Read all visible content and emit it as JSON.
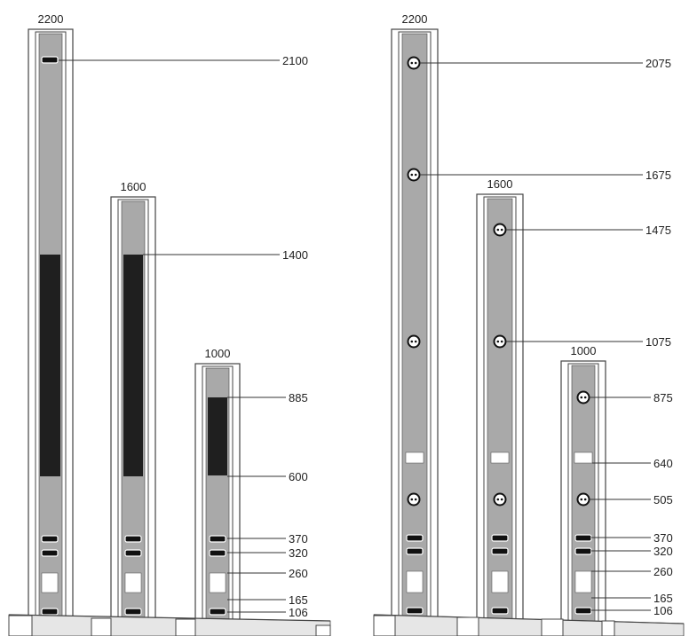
{
  "colors": {
    "frame_fill": "#ffffff",
    "frame_stroke": "#444444",
    "panel_fill": "#a9a9a9",
    "dark_panel_fill": "#1f1f1f",
    "slot_fill": "#111111",
    "leader_line": "#333333",
    "ground_fill": "#e6e6e6"
  },
  "left_group": {
    "columns": [
      {
        "height_label": "2200"
      },
      {
        "height_label": "1600"
      },
      {
        "height_label": "1000"
      }
    ],
    "callouts": [
      "2100",
      "1400",
      "885",
      "600",
      "370",
      "320",
      "260",
      "165",
      "106"
    ]
  },
  "right_group": {
    "columns": [
      {
        "height_label": "2200"
      },
      {
        "height_label": "1600"
      },
      {
        "height_label": "1000"
      }
    ],
    "callouts": [
      "2075",
      "1675",
      "1475",
      "1075",
      "875",
      "640",
      "505",
      "370",
      "320",
      "260",
      "165",
      "106"
    ]
  },
  "icons": {
    "slot": "rectangular-cable-port-icon",
    "socket": "round-socket-outlet-icon",
    "cutout": "white-panel-cutout-icon"
  }
}
